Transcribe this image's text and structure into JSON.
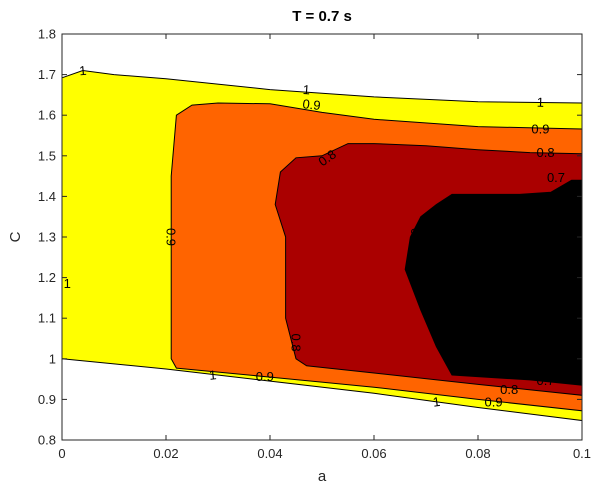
{
  "chart_data": {
    "type": "contour",
    "title": "T = 0.7 s",
    "xlabel": "a",
    "ylabel": "C",
    "xlim": [
      0,
      0.1
    ],
    "ylim": [
      0.8,
      1.8
    ],
    "x_ticks": [
      "0",
      "0.02",
      "0.04",
      "0.06",
      "0.08",
      "0.1"
    ],
    "y_ticks": [
      "0.8",
      "0.9",
      "1",
      "1.1",
      "1.2",
      "1.3",
      "1.4",
      "1.5",
      "1.6",
      "1.7",
      "1.8"
    ],
    "grid": false,
    "colors": {
      "level_1": "#ffff00",
      "level_0_9": "#ff6400",
      "level_0_8": "#aa0000",
      "level_0_7": "#000000",
      "background": "#ffffff"
    },
    "levels": [
      {
        "value": "1",
        "fill": "#ffff00",
        "region": [
          [
            0.0,
            1.0
          ],
          [
            0.02,
            0.975
          ],
          [
            0.04,
            0.945
          ],
          [
            0.06,
            0.915
          ],
          [
            0.08,
            0.88
          ],
          [
            0.1,
            0.848
          ],
          [
            0.1,
            1.63
          ],
          [
            0.08,
            1.633
          ],
          [
            0.06,
            1.645
          ],
          [
            0.04,
            1.663
          ],
          [
            0.02,
            1.69
          ],
          [
            0.01,
            1.7
          ],
          [
            0.004,
            1.71
          ],
          [
            0.0,
            1.692
          ]
        ]
      },
      {
        "value": "0.9",
        "fill": "#ff6400",
        "region": [
          [
            0.022,
            0.977
          ],
          [
            0.04,
            0.955
          ],
          [
            0.06,
            0.93
          ],
          [
            0.08,
            0.9
          ],
          [
            0.1,
            0.872
          ],
          [
            0.1,
            1.566
          ],
          [
            0.08,
            1.572
          ],
          [
            0.06,
            1.59
          ],
          [
            0.05,
            1.607
          ],
          [
            0.04,
            1.628
          ],
          [
            0.03,
            1.63
          ],
          [
            0.025,
            1.625
          ],
          [
            0.022,
            1.6
          ],
          [
            0.021,
            1.45
          ],
          [
            0.021,
            1.2
          ],
          [
            0.021,
            1.0
          ]
        ]
      },
      {
        "value": "0.8",
        "fill": "#aa0000",
        "region": [
          [
            0.047,
            0.983
          ],
          [
            0.06,
            0.965
          ],
          [
            0.08,
            0.937
          ],
          [
            0.1,
            0.91
          ],
          [
            0.1,
            1.505
          ],
          [
            0.09,
            1.508
          ],
          [
            0.08,
            1.515
          ],
          [
            0.07,
            1.525
          ],
          [
            0.06,
            1.53
          ],
          [
            0.055,
            1.53
          ],
          [
            0.05,
            1.5
          ],
          [
            0.045,
            1.495
          ],
          [
            0.042,
            1.46
          ],
          [
            0.041,
            1.38
          ],
          [
            0.043,
            1.3
          ],
          [
            0.043,
            1.1
          ],
          [
            0.045,
            1.0
          ]
        ]
      },
      {
        "value": "0.7",
        "fill": "#000000",
        "region": [
          [
            0.075,
            0.96
          ],
          [
            0.09,
            0.948
          ],
          [
            0.1,
            0.935
          ],
          [
            0.1,
            1.44
          ],
          [
            0.098,
            1.44
          ],
          [
            0.094,
            1.41
          ],
          [
            0.088,
            1.405
          ],
          [
            0.082,
            1.405
          ],
          [
            0.075,
            1.405
          ],
          [
            0.072,
            1.38
          ],
          [
            0.069,
            1.35
          ],
          [
            0.067,
            1.3
          ],
          [
            0.066,
            1.22
          ],
          [
            0.069,
            1.12
          ],
          [
            0.072,
            1.03
          ]
        ]
      }
    ],
    "contour_labels": [
      {
        "text": "1",
        "x": 0.004,
        "y": 1.71,
        "angle": -5
      },
      {
        "text": "1",
        "x": 0.047,
        "y": 1.663,
        "angle": 4
      },
      {
        "text": "1",
        "x": 0.092,
        "y": 1.632,
        "angle": 2
      },
      {
        "text": "1",
        "x": 0.001,
        "y": 1.185,
        "angle": 0
      },
      {
        "text": "1",
        "x": 0.029,
        "y": 0.96,
        "angle": -6
      },
      {
        "text": "1",
        "x": 0.072,
        "y": 0.894,
        "angle": -8
      },
      {
        "text": "0.9",
        "x": 0.048,
        "y": 1.626,
        "angle": 6
      },
      {
        "text": "0.9",
        "x": 0.092,
        "y": 1.566,
        "angle": 0
      },
      {
        "text": "0.9",
        "x": 0.021,
        "y": 1.3,
        "angle": 90
      },
      {
        "text": "0.9",
        "x": 0.039,
        "y": 0.957,
        "angle": 0
      },
      {
        "text": "0.9",
        "x": 0.083,
        "y": 0.893,
        "angle": 0
      },
      {
        "text": "0.8",
        "x": 0.051,
        "y": 1.495,
        "angle": -35
      },
      {
        "text": "0.8",
        "x": 0.093,
        "y": 1.508,
        "angle": 0
      },
      {
        "text": "0.8",
        "x": 0.045,
        "y": 1.04,
        "angle": 90
      },
      {
        "text": "0.8",
        "x": 0.086,
        "y": 0.925,
        "angle": 0
      },
      {
        "text": "0.7",
        "x": 0.095,
        "y": 1.447,
        "angle": 0
      },
      {
        "text": "0.7",
        "x": 0.068,
        "y": 1.3,
        "angle": 90
      },
      {
        "text": "0.7",
        "x": 0.093,
        "y": 0.947,
        "angle": 0
      }
    ]
  }
}
